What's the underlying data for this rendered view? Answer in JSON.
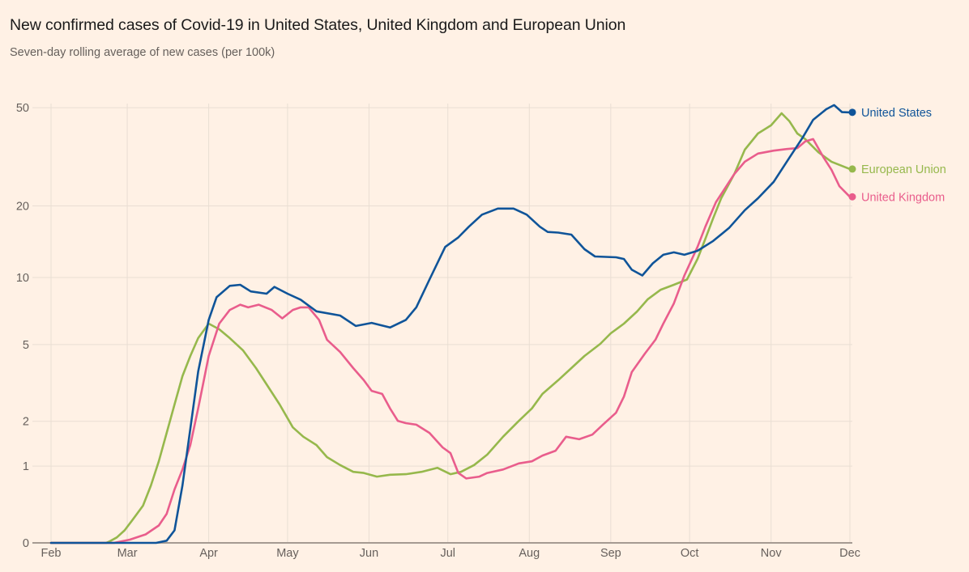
{
  "header": {
    "title": "New confirmed cases of Covid-19 in United States, United Kingdom and European Union",
    "subtitle": "Seven-day rolling average of new cases (per 100k)"
  },
  "chart_data": {
    "type": "line",
    "title": "New confirmed cases of Covid-19 in United States, United Kingdom and European Union",
    "subtitle": "Seven-day rolling average of new cases (per 100k)",
    "xlabel": "",
    "ylabel": "",
    "x_unit": "days since 2020-02-01",
    "x_range": [
      0,
      304
    ],
    "y_scale": "symlog (log10(1+v))",
    "ylim": [
      0,
      50
    ],
    "y_ticks": [
      0,
      1,
      2,
      5,
      10,
      20,
      50
    ],
    "y_tick_labels": [
      "0",
      "1",
      "2",
      "5",
      "10",
      "20",
      "50"
    ],
    "x_ticks": [
      0,
      29,
      60,
      90,
      121,
      151,
      182,
      213,
      243,
      274,
      304
    ],
    "x_tick_labels": [
      "Feb",
      "Mar",
      "Apr",
      "May",
      "Jun",
      "Jul",
      "Aug",
      "Sep",
      "Oct",
      "Nov",
      "Dec"
    ],
    "grid": true,
    "legend": "right, labels at line ends",
    "series": [
      {
        "name": "United States",
        "color": "#0f5499",
        "points": [
          [
            0,
            0
          ],
          [
            40,
            0
          ],
          [
            44,
            0.02
          ],
          [
            47,
            0.12
          ],
          [
            50,
            0.68
          ],
          [
            53,
            1.8
          ],
          [
            56,
            3.7
          ],
          [
            60,
            6.5
          ],
          [
            63,
            8.2
          ],
          [
            68,
            9.2
          ],
          [
            72,
            9.3
          ],
          [
            76,
            8.7
          ],
          [
            82,
            8.5
          ],
          [
            85,
            9.1
          ],
          [
            90,
            8.5
          ],
          [
            95,
            8.0
          ],
          [
            101,
            7.1
          ],
          [
            110,
            6.8
          ],
          [
            116,
            6.1
          ],
          [
            122,
            6.3
          ],
          [
            129,
            6.0
          ],
          [
            135,
            6.5
          ],
          [
            139,
            7.4
          ],
          [
            144,
            9.8
          ],
          [
            150,
            13.5
          ],
          [
            155,
            14.8
          ],
          [
            159,
            16.4
          ],
          [
            164,
            18.4
          ],
          [
            170,
            19.5
          ],
          [
            176,
            19.5
          ],
          [
            181,
            18.4
          ],
          [
            186,
            16.4
          ],
          [
            189,
            15.6
          ],
          [
            193,
            15.5
          ],
          [
            198,
            15.2
          ],
          [
            203,
            13.2
          ],
          [
            207,
            12.3
          ],
          [
            215,
            12.2
          ],
          [
            218,
            12.0
          ],
          [
            221,
            10.8
          ],
          [
            225,
            10.2
          ],
          [
            229,
            11.5
          ],
          [
            233,
            12.5
          ],
          [
            237,
            12.8
          ],
          [
            241,
            12.5
          ],
          [
            246,
            13.0
          ],
          [
            252,
            14.3
          ],
          [
            258,
            16.2
          ],
          [
            264,
            19.2
          ],
          [
            269,
            21.5
          ],
          [
            275,
            25.1
          ],
          [
            281,
            31.5
          ],
          [
            286,
            37.9
          ],
          [
            290,
            44.7
          ],
          [
            295,
            49.3
          ],
          [
            298,
            51.2
          ],
          [
            301,
            48.0
          ],
          [
            304,
            47.9
          ]
        ]
      },
      {
        "name": "European Union",
        "color": "#96b84c",
        "points": [
          [
            0,
            0
          ],
          [
            21,
            0
          ],
          [
            22,
            0.01
          ],
          [
            25,
            0.05
          ],
          [
            28,
            0.12
          ],
          [
            31,
            0.23
          ],
          [
            35,
            0.4
          ],
          [
            38,
            0.68
          ],
          [
            41,
            1.09
          ],
          [
            44,
            1.7
          ],
          [
            47,
            2.49
          ],
          [
            50,
            3.51
          ],
          [
            53,
            4.41
          ],
          [
            56,
            5.36
          ],
          [
            60,
            6.25
          ],
          [
            64,
            5.89
          ],
          [
            68,
            5.36
          ],
          [
            73,
            4.7
          ],
          [
            78,
            3.85
          ],
          [
            82,
            3.19
          ],
          [
            87,
            2.49
          ],
          [
            92,
            1.84
          ],
          [
            96,
            1.61
          ],
          [
            101,
            1.42
          ],
          [
            105,
            1.17
          ],
          [
            110,
            1.02
          ],
          [
            115,
            0.9
          ],
          [
            119,
            0.88
          ],
          [
            124,
            0.82
          ],
          [
            129,
            0.85
          ],
          [
            135,
            0.86
          ],
          [
            141,
            0.9
          ],
          [
            147,
            0.97
          ],
          [
            152,
            0.86
          ],
          [
            156,
            0.9
          ],
          [
            161,
            1.02
          ],
          [
            166,
            1.22
          ],
          [
            172,
            1.61
          ],
          [
            178,
            2.01
          ],
          [
            183,
            2.37
          ],
          [
            187,
            2.84
          ],
          [
            193,
            3.35
          ],
          [
            198,
            3.85
          ],
          [
            203,
            4.41
          ],
          [
            209,
            5.04
          ],
          [
            213,
            5.64
          ],
          [
            218,
            6.25
          ],
          [
            223,
            7.09
          ],
          [
            227,
            8.02
          ],
          [
            232,
            8.85
          ],
          [
            237,
            9.3
          ],
          [
            242,
            9.8
          ],
          [
            246,
            12.0
          ],
          [
            249,
            14.6
          ],
          [
            252,
            17.8
          ],
          [
            255,
            21.5
          ],
          [
            260,
            27.0
          ],
          [
            264,
            33.9
          ],
          [
            269,
            39.4
          ],
          [
            274,
            42.5
          ],
          [
            278,
            47.5
          ],
          [
            281,
            44.1
          ],
          [
            284,
            39.4
          ],
          [
            287,
            37.4
          ],
          [
            292,
            33.1
          ],
          [
            297,
            30.3
          ],
          [
            304,
            28.3
          ]
        ]
      },
      {
        "name": "United Kingdom",
        "color": "#e95d8c",
        "points": [
          [
            0,
            0
          ],
          [
            24,
            0
          ],
          [
            30,
            0.03
          ],
          [
            36,
            0.08
          ],
          [
            41,
            0.17
          ],
          [
            44,
            0.3
          ],
          [
            47,
            0.62
          ],
          [
            50,
            0.94
          ],
          [
            53,
            1.42
          ],
          [
            56,
            2.37
          ],
          [
            60,
            4.41
          ],
          [
            64,
            6.25
          ],
          [
            68,
            7.2
          ],
          [
            72,
            7.6
          ],
          [
            75,
            7.4
          ],
          [
            79,
            7.6
          ],
          [
            84,
            7.2
          ],
          [
            88,
            6.6
          ],
          [
            92,
            7.2
          ],
          [
            95,
            7.4
          ],
          [
            98,
            7.4
          ],
          [
            102,
            6.5
          ],
          [
            105,
            5.27
          ],
          [
            110,
            4.61
          ],
          [
            115,
            3.85
          ],
          [
            119,
            3.35
          ],
          [
            122,
            2.95
          ],
          [
            126,
            2.84
          ],
          [
            129,
            2.37
          ],
          [
            132,
            2.01
          ],
          [
            135,
            1.95
          ],
          [
            139,
            1.91
          ],
          [
            144,
            1.7
          ],
          [
            149,
            1.37
          ],
          [
            152,
            1.25
          ],
          [
            155,
            0.88
          ],
          [
            158,
            0.79
          ],
          [
            163,
            0.82
          ],
          [
            166,
            0.88
          ],
          [
            172,
            0.94
          ],
          [
            178,
            1.05
          ],
          [
            183,
            1.09
          ],
          [
            187,
            1.2
          ],
          [
            192,
            1.3
          ],
          [
            196,
            1.61
          ],
          [
            201,
            1.55
          ],
          [
            206,
            1.66
          ],
          [
            210,
            1.91
          ],
          [
            215,
            2.24
          ],
          [
            218,
            2.75
          ],
          [
            221,
            3.68
          ],
          [
            226,
            4.53
          ],
          [
            230,
            5.27
          ],
          [
            233,
            6.25
          ],
          [
            237,
            7.7
          ],
          [
            241,
            10.2
          ],
          [
            246,
            13.5
          ],
          [
            249,
            16.4
          ],
          [
            253,
            20.7
          ],
          [
            260,
            27.0
          ],
          [
            264,
            30.3
          ],
          [
            269,
            32.7
          ],
          [
            275,
            33.6
          ],
          [
            280,
            34.1
          ],
          [
            284,
            34.4
          ],
          [
            287,
            36.6
          ],
          [
            290,
            37.4
          ],
          [
            294,
            31.5
          ],
          [
            297,
            28.1
          ],
          [
            300,
            24.1
          ],
          [
            304,
            21.8
          ]
        ]
      }
    ]
  }
}
